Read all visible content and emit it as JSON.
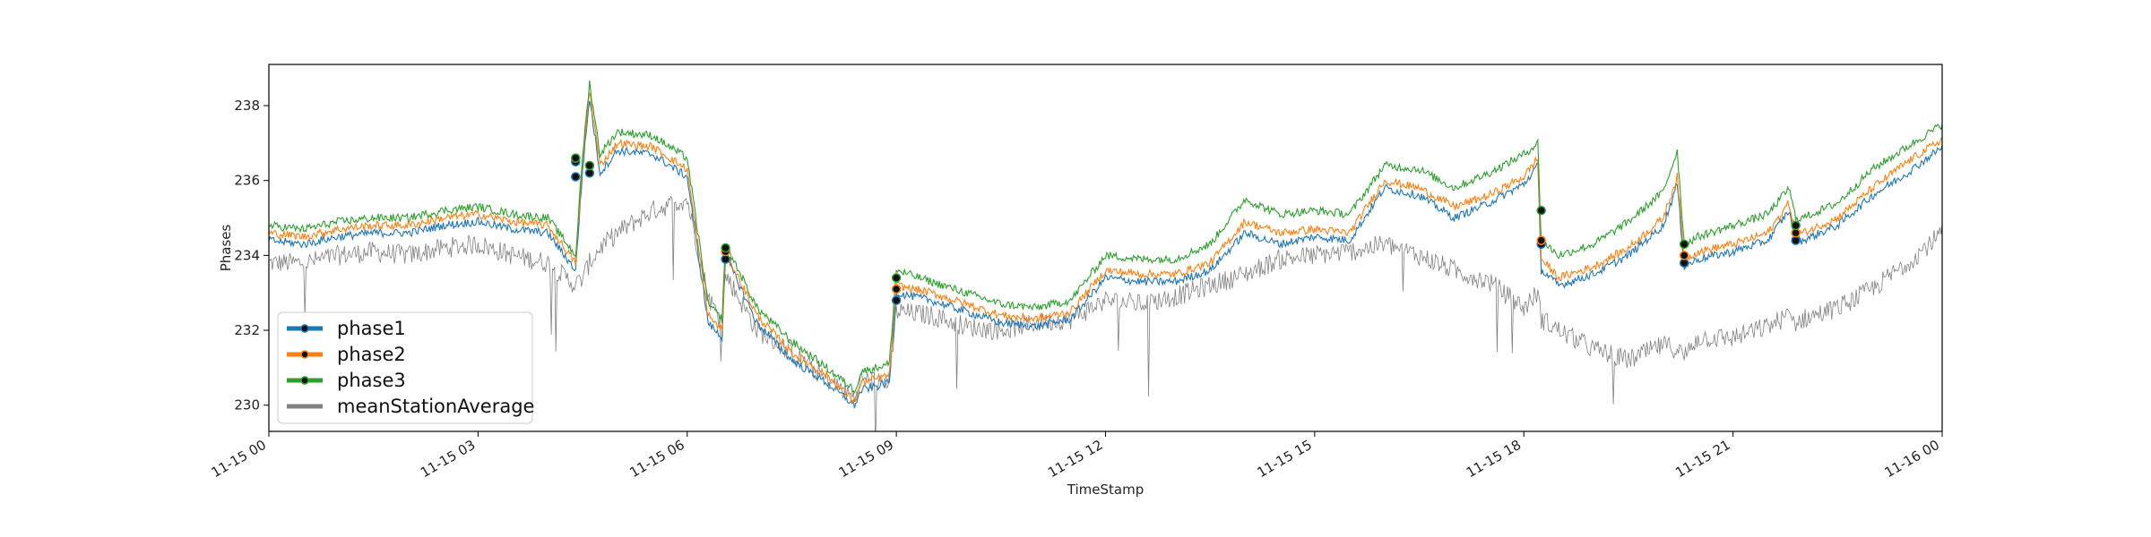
{
  "chart_data": {
    "type": "line",
    "xlabel": "TimeStamp",
    "ylabel": "Phases",
    "x_range": [
      "11-15 00",
      "11-16 00"
    ],
    "x_ticks": [
      "11-15 00",
      "11-15 03",
      "11-15 06",
      "11-15 09",
      "11-15 12",
      "11-15 15",
      "11-15 18",
      "11-15 21",
      "11-16 00"
    ],
    "y_ticks": [
      "230",
      "232",
      "234",
      "236",
      "238"
    ],
    "ylim": [
      229.3,
      239.1
    ],
    "grid": false,
    "legend_position": "lower-left",
    "x_hours": [
      0,
      0.5,
      1,
      1.5,
      2,
      2.5,
      3,
      3.5,
      4,
      4.4,
      4.5,
      4.6,
      4.75,
      5,
      5.5,
      6,
      6.3,
      6.5,
      6.55,
      7,
      7.5,
      8,
      8.4,
      8.5,
      8.9,
      9,
      9.5,
      10,
      10.5,
      11,
      11.5,
      12,
      12.5,
      13,
      13.5,
      14,
      14.5,
      15,
      15.5,
      16,
      16.5,
      17,
      17.5,
      18,
      18.2,
      18.25,
      18.5,
      19,
      19.5,
      20,
      20.2,
      20.3,
      20.5,
      21,
      21.5,
      21.8,
      21.9,
      22,
      22.5,
      23,
      23.5,
      24
    ],
    "series": [
      {
        "name": "phase1",
        "color": "#1f77b4",
        "values": [
          234.4,
          234.3,
          234.5,
          234.6,
          234.6,
          234.8,
          234.9,
          234.7,
          234.6,
          233.6,
          236.3,
          238.2,
          236.2,
          236.8,
          236.7,
          236.1,
          232.2,
          231.8,
          234.0,
          232.2,
          231.2,
          230.6,
          230.0,
          230.4,
          230.6,
          233.0,
          232.8,
          232.5,
          232.2,
          232.1,
          232.3,
          233.4,
          233.3,
          233.3,
          233.6,
          234.6,
          234.3,
          234.5,
          234.4,
          235.8,
          235.6,
          235.0,
          235.4,
          235.9,
          236.4,
          233.6,
          233.2,
          233.5,
          234.0,
          234.8,
          235.9,
          233.7,
          233.9,
          234.1,
          234.4,
          235.2,
          234.4,
          234.4,
          234.8,
          235.6,
          236.2,
          236.9
        ],
        "marker_points": [
          [
            4.4,
            236.1
          ],
          [
            4.4,
            236.5
          ],
          [
            4.6,
            236.2
          ],
          [
            6.55,
            233.9
          ],
          [
            9,
            232.8
          ],
          [
            18.25,
            234.3
          ],
          [
            20.3,
            233.8
          ],
          [
            21.9,
            234.4
          ]
        ]
      },
      {
        "name": "phase2",
        "color": "#ff7f0e",
        "values": [
          234.6,
          234.5,
          234.7,
          234.8,
          234.8,
          235.0,
          235.1,
          234.9,
          234.8,
          233.8,
          236.5,
          238.4,
          236.4,
          237.0,
          236.9,
          236.3,
          232.4,
          232.0,
          234.1,
          232.4,
          231.4,
          230.8,
          230.1,
          230.6,
          230.8,
          233.2,
          233.0,
          232.7,
          232.4,
          232.3,
          232.5,
          233.6,
          233.5,
          233.5,
          233.8,
          234.9,
          234.6,
          234.7,
          234.6,
          236.0,
          235.8,
          235.3,
          235.6,
          236.1,
          236.6,
          233.9,
          233.4,
          233.7,
          234.2,
          235.0,
          236.1,
          233.9,
          234.1,
          234.3,
          234.6,
          235.4,
          234.6,
          234.6,
          235.0,
          235.8,
          236.5,
          237.1
        ],
        "marker_points": [
          [
            4.4,
            236.6
          ],
          [
            4.6,
            236.4
          ],
          [
            6.55,
            234.1
          ],
          [
            9,
            233.1
          ],
          [
            18.25,
            234.4
          ],
          [
            20.3,
            234.0
          ],
          [
            21.9,
            234.6
          ]
        ]
      },
      {
        "name": "phase3",
        "color": "#2ca02c",
        "values": [
          234.8,
          234.7,
          234.9,
          235.0,
          235.0,
          235.2,
          235.3,
          235.1,
          235.0,
          234.0,
          236.7,
          238.6,
          236.7,
          237.3,
          237.2,
          236.6,
          232.7,
          232.3,
          234.3,
          232.6,
          231.7,
          231.0,
          230.4,
          230.9,
          231.1,
          233.6,
          233.3,
          233.0,
          232.7,
          232.6,
          232.8,
          234.0,
          233.9,
          233.9,
          234.3,
          235.5,
          235.1,
          235.2,
          235.1,
          236.4,
          236.3,
          235.8,
          236.2,
          236.7,
          237.0,
          234.4,
          234.0,
          234.3,
          234.9,
          235.7,
          236.8,
          234.3,
          234.5,
          234.8,
          235.1,
          235.8,
          235.0,
          235.0,
          235.4,
          236.3,
          236.9,
          237.5
        ],
        "marker_points": [
          [
            4.4,
            236.6
          ],
          [
            4.6,
            236.4
          ],
          [
            6.55,
            234.2
          ],
          [
            9,
            233.4
          ],
          [
            18.25,
            235.2
          ],
          [
            20.3,
            234.3
          ],
          [
            21.9,
            234.8
          ]
        ]
      },
      {
        "name": "meanStationAverage",
        "color": "#808080",
        "values": [
          233.8,
          233.8,
          234.0,
          234.1,
          234.0,
          234.2,
          234.3,
          234.0,
          233.8,
          233.2,
          233.4,
          233.8,
          234.2,
          234.6,
          235.2,
          235.5,
          232.9,
          232.2,
          233.5,
          232.0,
          231.4,
          230.7,
          230.2,
          230.7,
          230.6,
          232.5,
          232.4,
          232.1,
          232.0,
          232.2,
          232.3,
          232.8,
          232.7,
          232.9,
          233.2,
          233.5,
          233.9,
          234.0,
          234.1,
          234.3,
          234.0,
          233.6,
          233.3,
          232.6,
          233.0,
          232.3,
          232.0,
          231.5,
          231.2,
          231.6,
          231.5,
          231.3,
          231.8,
          231.8,
          232.1,
          232.4,
          232.2,
          232.3,
          232.6,
          233.1,
          233.8,
          234.6
        ],
        "marker_points": []
      }
    ]
  },
  "legend": {
    "items": [
      {
        "label": "phase1",
        "color": "#1f77b4",
        "marker": true
      },
      {
        "label": "phase2",
        "color": "#ff7f0e",
        "marker": true
      },
      {
        "label": "phase3",
        "color": "#2ca02c",
        "marker": true
      },
      {
        "label": "meanStationAverage",
        "color": "#808080",
        "marker": false
      }
    ]
  }
}
